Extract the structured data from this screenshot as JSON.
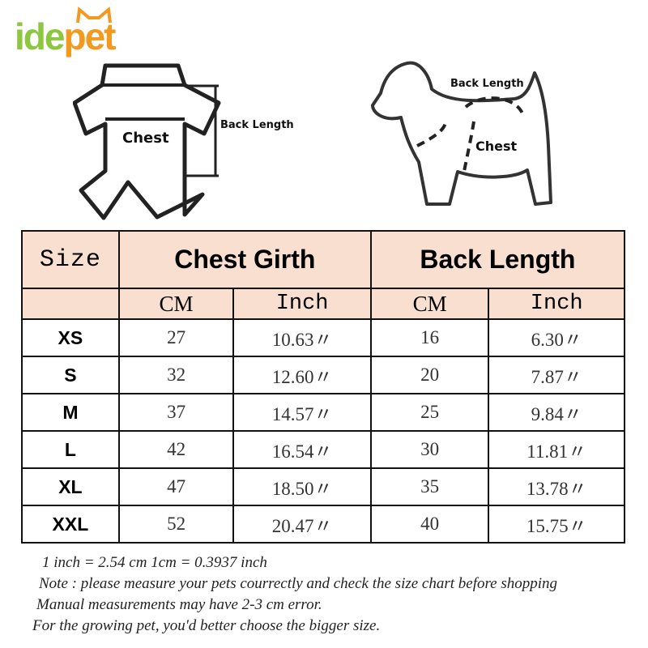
{
  "brand": {
    "logo_text": "idepet",
    "colors": {
      "green": "#8dc63f",
      "orange": "#f29a1f"
    }
  },
  "diagrams": {
    "garment": {
      "chest_label": "Chest",
      "back_length_label": "Back Length"
    },
    "dog": {
      "chest_label": "Chest",
      "back_length_label": "Back Length"
    }
  },
  "table": {
    "header_color": "#f9dfcf",
    "size_header": "Size",
    "groups": [
      "Chest Girth",
      "Back Length"
    ],
    "units": [
      "CM",
      "Inch",
      "CM",
      "Inch"
    ],
    "rows": [
      {
        "size": "XS",
        "chest_cm": "27",
        "chest_in": "10.63〃",
        "back_cm": "16",
        "back_in": "6.30〃"
      },
      {
        "size": "S",
        "chest_cm": "32",
        "chest_in": "12.60〃",
        "back_cm": "20",
        "back_in": "7.87〃"
      },
      {
        "size": "M",
        "chest_cm": "37",
        "chest_in": "14.57〃",
        "back_cm": "25",
        "back_in": "9.84〃"
      },
      {
        "size": "L",
        "chest_cm": "42",
        "chest_in": "16.54〃",
        "back_cm": "30",
        "back_in": "11.81〃"
      },
      {
        "size": "XL",
        "chest_cm": "47",
        "chest_in": "18.50〃",
        "back_cm": "35",
        "back_in": "13.78〃"
      },
      {
        "size": "XXL",
        "chest_cm": "52",
        "chest_in": "20.47〃",
        "back_cm": "40",
        "back_in": "15.75〃"
      }
    ]
  },
  "notes": [
    "1 inch = 2.54 cm    1cm = 0.3937 inch",
    "Note : please measure your pets courrectly and check the size chart before shopping",
    "Manual measurements may have 2-3 cm error.",
    "For the growing pet, you'd better choose the bigger size."
  ]
}
